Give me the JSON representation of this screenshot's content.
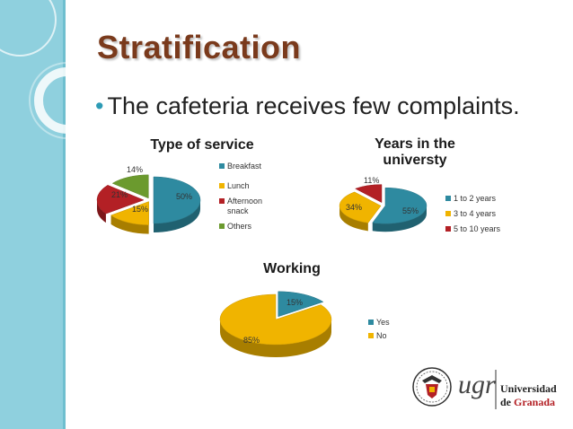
{
  "slide": {
    "title": "Stratification",
    "bullet": "The cafeteria receives few complaints."
  },
  "colors": {
    "teal": "#2e8aa0",
    "gold": "#f0b400",
    "red": "#b32025",
    "green": "#6b9a2e",
    "title": "#7a3a1c",
    "sidebar": "#8fd0de"
  },
  "chart_data": [
    {
      "type": "pie",
      "title": "Type of service",
      "categories": [
        "Breakfast",
        "Lunch",
        "Afternoon snack",
        "Others"
      ],
      "values": [
        50,
        15,
        21,
        14
      ],
      "value_labels": [
        "50%",
        "15%",
        "21%",
        "14%"
      ],
      "legend_position": "right"
    },
    {
      "type": "pie",
      "title": "Years in the universty",
      "categories": [
        "1 to 2 years",
        "3 to 4 years",
        "5 to 10 years"
      ],
      "values": [
        55,
        34,
        11
      ],
      "value_labels": [
        "55%",
        "34%",
        "11%"
      ],
      "legend_position": "right"
    },
    {
      "type": "pie",
      "title": "Working",
      "categories": [
        "Yes",
        "No"
      ],
      "values": [
        15,
        85
      ],
      "value_labels": [
        "15%",
        "85%"
      ],
      "legend_position": "right"
    }
  ],
  "logo": {
    "mark": "ugr",
    "line1": "Universidad",
    "line2_prefix": "de",
    "line2": "Granada"
  }
}
